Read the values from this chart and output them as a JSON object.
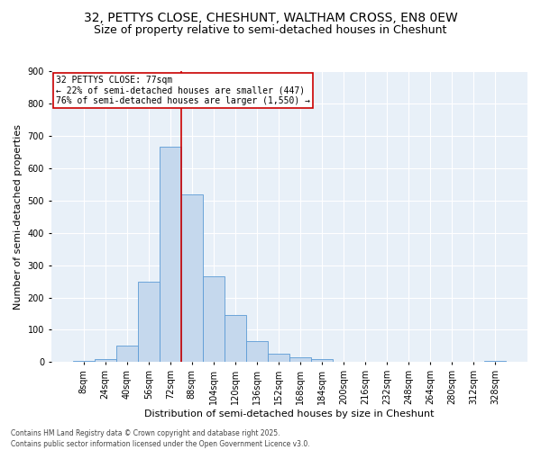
{
  "title_line1": "32, PETTYS CLOSE, CHESHUNT, WALTHAM CROSS, EN8 0EW",
  "title_line2": "Size of property relative to semi-detached houses in Cheshunt",
  "xlabel": "Distribution of semi-detached houses by size in Cheshunt",
  "ylabel": "Number of semi-detached properties",
  "bar_values": [
    5,
    10,
    50,
    250,
    665,
    520,
    265,
    145,
    65,
    25,
    15,
    10,
    0,
    0,
    0,
    0,
    0,
    0,
    0,
    5
  ],
  "bar_labels": [
    "8sqm",
    "24sqm",
    "40sqm",
    "56sqm",
    "72sqm",
    "88sqm",
    "104sqm",
    "120sqm",
    "136sqm",
    "152sqm",
    "168sqm",
    "184sqm",
    "200sqm",
    "216sqm",
    "232sqm",
    "248sqm",
    "264sqm",
    "280sqm",
    "312sqm",
    "328sqm"
  ],
  "bar_color": "#c5d8ed",
  "bar_edgecolor": "#5b9bd5",
  "vline_x": 4.5,
  "vline_color": "#cc0000",
  "annotation_title": "32 PETTYS CLOSE: 77sqm",
  "annotation_line1": "← 22% of semi-detached houses are smaller (447)",
  "annotation_line2": "76% of semi-detached houses are larger (1,550) →",
  "annotation_box_color": "#ffffff",
  "annotation_box_edgecolor": "#cc0000",
  "ylim": [
    0,
    900
  ],
  "yticks": [
    0,
    100,
    200,
    300,
    400,
    500,
    600,
    700,
    800,
    900
  ],
  "bg_color": "#e8f0f8",
  "footer_line1": "Contains HM Land Registry data © Crown copyright and database right 2025.",
  "footer_line2": "Contains public sector information licensed under the Open Government Licence v3.0.",
  "title_fontsize": 10,
  "subtitle_fontsize": 9,
  "axis_label_fontsize": 8,
  "tick_fontsize": 7,
  "annotation_fontsize": 7,
  "footer_fontsize": 5.5
}
